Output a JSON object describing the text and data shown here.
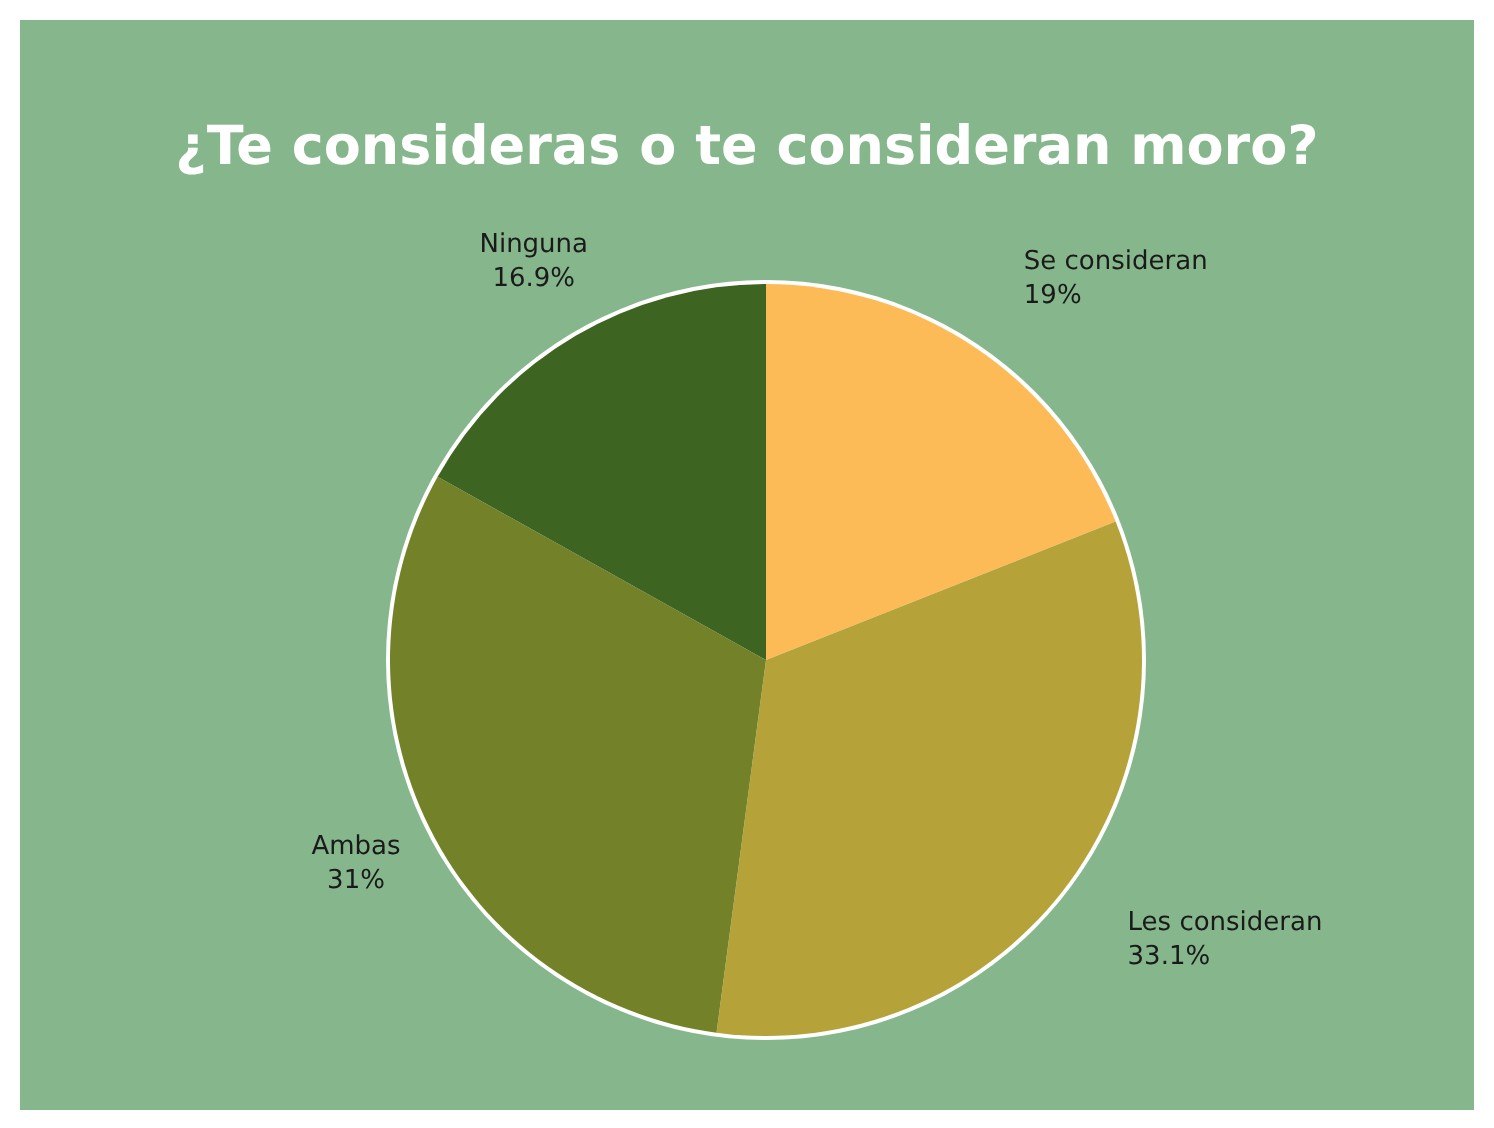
{
  "chart_data": {
    "type": "pie",
    "title": "¿Te consideras o te consideran moro?",
    "categories": [
      "Se consideran",
      "Les consideran",
      "Ambas",
      "Ninguna"
    ],
    "values": [
      19,
      33.1,
      31,
      16.9
    ],
    "value_labels": [
      "19%",
      "33.1%",
      "31%",
      "16.9%"
    ],
    "colors": [
      "#fdbb57",
      "#b5a33a",
      "#738228",
      "#3d6420"
    ]
  }
}
